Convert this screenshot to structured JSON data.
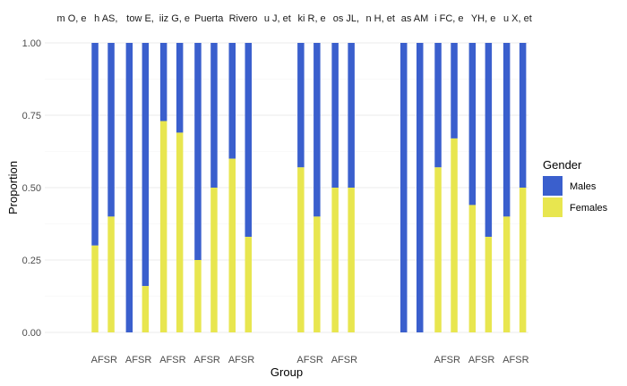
{
  "chart_data": {
    "type": "bar",
    "stacked": true,
    "xlabel": "Group",
    "ylabel": "Proportion",
    "ylim": [
      0,
      1
    ],
    "yticks": [
      "0.00",
      "0.25",
      "0.50",
      "0.75",
      "1.00"
    ],
    "grid": true,
    "legend": {
      "title": "Gender",
      "position": "right",
      "entries": [
        {
          "name": "Males",
          "color": "#3A5FCD"
        },
        {
          "name": "Females",
          "color": "#E8E64F"
        }
      ]
    },
    "colors": {
      "Males": "#3A5FCD",
      "Females": "#E8E64F"
    },
    "panels": [
      {
        "strip": "m O, e",
        "bars": []
      },
      {
        "strip": "h AS,",
        "axis_label": "AFSR",
        "bars": [
          {
            "label": "AF",
            "females": 0.3
          },
          {
            "label": "SR",
            "females": 0.4
          }
        ]
      },
      {
        "strip": "tow E,",
        "axis_label": "AFSR",
        "bars": [
          {
            "label": "AF",
            "females": 0.0
          },
          {
            "label": "SR",
            "females": 0.16
          }
        ]
      },
      {
        "strip": "iiz G, e",
        "axis_label": "AFSR",
        "bars": [
          {
            "label": "AF",
            "females": 0.73
          },
          {
            "label": "SR",
            "females": 0.69
          }
        ]
      },
      {
        "strip": "Puerta",
        "axis_label": "AFSR",
        "bars": [
          {
            "label": "AF",
            "females": 0.25
          },
          {
            "label": "SR",
            "females": 0.5
          }
        ]
      },
      {
        "strip": "Rivero",
        "axis_label": "AFSR",
        "bars": [
          {
            "label": "AF",
            "females": 0.6
          },
          {
            "label": "SR",
            "females": 0.33
          }
        ]
      },
      {
        "strip": "u J, et",
        "bars": []
      },
      {
        "strip": "ki R, e",
        "axis_label": "AFSR",
        "bars": [
          {
            "label": "AF",
            "females": 0.57
          },
          {
            "label": "SR",
            "females": 0.4
          }
        ]
      },
      {
        "strip": "os JL,",
        "axis_label": "AFSR",
        "bars": [
          {
            "label": "AF",
            "females": 0.5
          },
          {
            "label": "SR",
            "females": 0.5
          }
        ]
      },
      {
        "strip": "n H, et",
        "bars": []
      },
      {
        "strip": "as AM",
        "axis_label": "",
        "bars": [
          {
            "label": "AF",
            "females": 0.0
          },
          {
            "label": "SR",
            "females": 0.0
          }
        ]
      },
      {
        "strip": "i FC, e",
        "axis_label": "AFSR",
        "bars": [
          {
            "label": "AF",
            "females": 0.57
          },
          {
            "label": "SR",
            "females": 0.67
          }
        ]
      },
      {
        "strip": "YH, e",
        "axis_label": "AFSR",
        "bars": [
          {
            "label": "AF",
            "females": 0.44
          },
          {
            "label": "SR",
            "females": 0.33
          }
        ]
      },
      {
        "strip": "u X, et",
        "axis_label": "AFSR",
        "bars": [
          {
            "label": "AF",
            "females": 0.4
          },
          {
            "label": "SR",
            "females": 0.5
          }
        ]
      }
    ]
  }
}
